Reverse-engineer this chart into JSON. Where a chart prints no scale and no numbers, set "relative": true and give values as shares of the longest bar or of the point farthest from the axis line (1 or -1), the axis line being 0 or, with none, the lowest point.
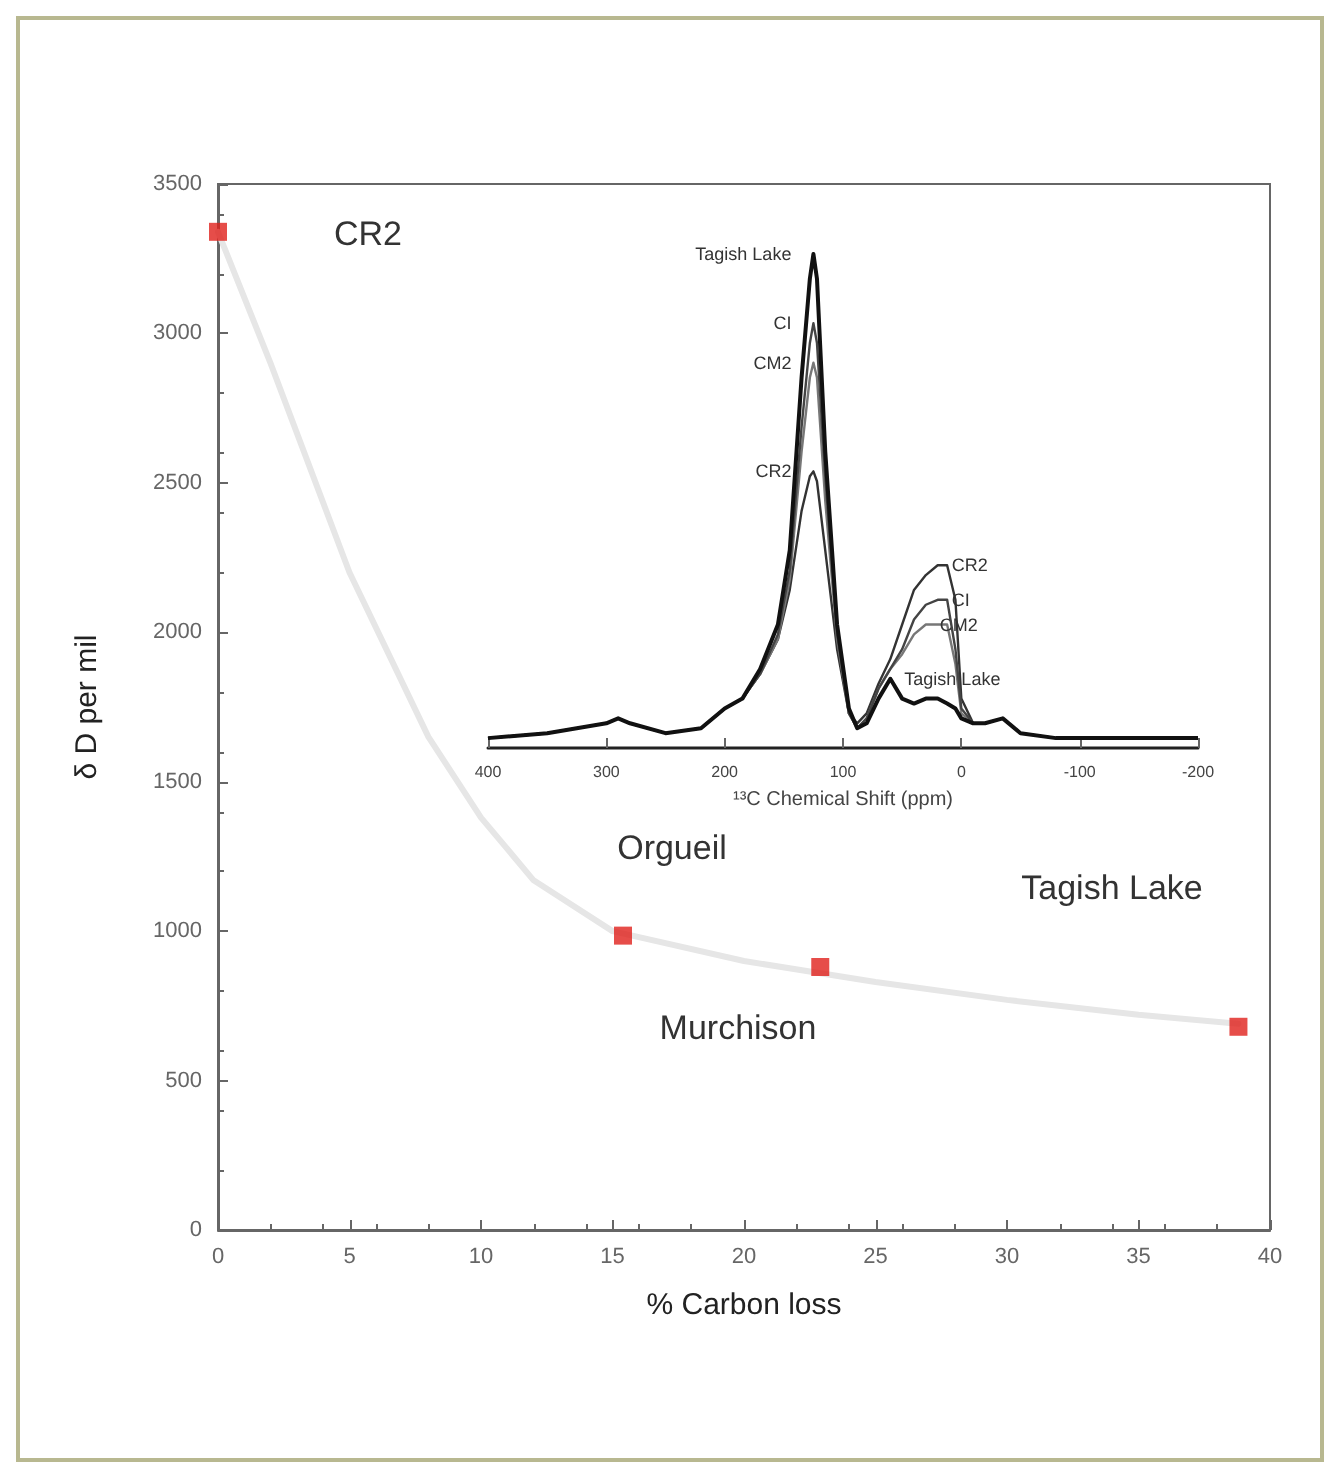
{
  "chart_data": [
    {
      "type": "scatter",
      "xlabel": "% Carbon loss",
      "ylabel": "δ D per mil",
      "xlim": [
        0,
        40
      ],
      "xticks": [
        0,
        5,
        10,
        15,
        20,
        25,
        30,
        35,
        40
      ],
      "ylim": [
        0,
        3500
      ],
      "yticks": [
        0,
        500,
        1000,
        1500,
        2000,
        2500,
        3000,
        3500
      ],
      "grid": false,
      "marker": "square",
      "series": [
        {
          "color": "#e0201b",
          "x": [
            0,
            15.4,
            22.9,
            38.8
          ],
          "values": [
            3340,
            985,
            880,
            680
          ]
        },
        {
          "type": "line",
          "color": "#e6e6e6",
          "marker": "none",
          "x": [
            0,
            2,
            5,
            8,
            10,
            12,
            15,
            20,
            25,
            30,
            35,
            38.8
          ],
          "values": [
            3340,
            2900,
            2200,
            1650,
            1380,
            1170,
            1000,
            900,
            830,
            770,
            720,
            690
          ]
        }
      ],
      "annotations": [
        "CR2",
        "Orgueil",
        "Murchison",
        "Tagish Lake"
      ]
    },
    {
      "type": "line",
      "relative": true,
      "xlabel": "¹³C Chemical Shift (ppm)",
      "xlim": [
        400,
        -200
      ],
      "xticks": [
        400,
        300,
        200,
        100,
        0,
        -100,
        -200
      ],
      "tick_labels": "x",
      "grid": false,
      "x": [
        400,
        350,
        300,
        290,
        280,
        250,
        220,
        200,
        185,
        170,
        155,
        145,
        135,
        128,
        125,
        122,
        115,
        105,
        95,
        88,
        80,
        70,
        60,
        50,
        40,
        30,
        20,
        12,
        5,
        0,
        -10,
        -20,
        -35,
        -50,
        -80,
        -120,
        -160,
        -200
      ],
      "series": [
        {
          "name": "Tagish Lake",
          "color": "#111111",
          "values": [
            0.02,
            0.03,
            0.05,
            0.06,
            0.05,
            0.03,
            0.04,
            0.08,
            0.1,
            0.16,
            0.25,
            0.4,
            0.75,
            0.95,
            1.0,
            0.95,
            0.6,
            0.25,
            0.08,
            0.04,
            0.05,
            0.1,
            0.14,
            0.1,
            0.09,
            0.1,
            0.1,
            0.09,
            0.08,
            0.06,
            0.05,
            0.05,
            0.06,
            0.03,
            0.02,
            0.02,
            0.02,
            0.02
          ]
        },
        {
          "name": "CI",
          "color": "#444444",
          "values": [
            0.02,
            0.03,
            0.05,
            0.06,
            0.05,
            0.03,
            0.04,
            0.08,
            0.1,
            0.15,
            0.23,
            0.36,
            0.65,
            0.82,
            0.86,
            0.82,
            0.55,
            0.23,
            0.07,
            0.04,
            0.06,
            0.12,
            0.16,
            0.2,
            0.26,
            0.29,
            0.3,
            0.3,
            0.2,
            0.08,
            0.05,
            0.05,
            0.06,
            0.03,
            0.02,
            0.02,
            0.02,
            0.02
          ]
        },
        {
          "name": "CM2",
          "color": "#777777",
          "values": [
            0.02,
            0.03,
            0.05,
            0.06,
            0.05,
            0.03,
            0.04,
            0.08,
            0.1,
            0.15,
            0.22,
            0.34,
            0.6,
            0.75,
            0.78,
            0.75,
            0.5,
            0.22,
            0.07,
            0.04,
            0.06,
            0.12,
            0.16,
            0.19,
            0.23,
            0.25,
            0.25,
            0.25,
            0.17,
            0.07,
            0.05,
            0.05,
            0.06,
            0.03,
            0.02,
            0.02,
            0.02,
            0.02
          ]
        },
        {
          "name": "CR2",
          "color": "#333333",
          "values": [
            0.02,
            0.03,
            0.05,
            0.06,
            0.05,
            0.03,
            0.04,
            0.08,
            0.1,
            0.15,
            0.22,
            0.32,
            0.48,
            0.55,
            0.56,
            0.54,
            0.4,
            0.2,
            0.07,
            0.05,
            0.07,
            0.13,
            0.18,
            0.25,
            0.32,
            0.35,
            0.37,
            0.37,
            0.3,
            0.1,
            0.05,
            0.05,
            0.06,
            0.03,
            0.02,
            0.02,
            0.02,
            0.02
          ]
        }
      ]
    }
  ]
}
